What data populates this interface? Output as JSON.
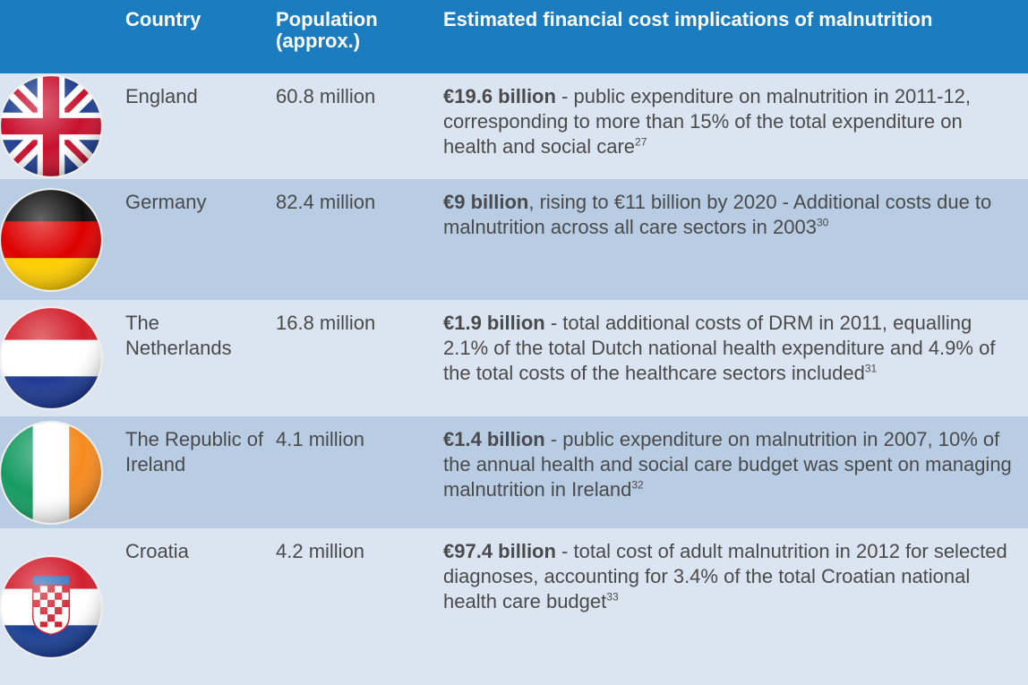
{
  "table": {
    "header": [
      "Country",
      "Population (approx.)",
      "Estimated financial cost implications of malnutrition"
    ],
    "rows": [
      {
        "country": "England",
        "population": "60.8 million",
        "cost_bold": "€19.6 billion",
        "cost_text": " - public expenditure on malnutrition in 2011-12, corresponding to more than 15% of the total expenditure on health and social care",
        "ref": "27"
      },
      {
        "country": "Germany",
        "population": "82.4 million",
        "cost_bold": "€9 billion",
        "cost_text": ", rising to €11 billion by 2020 - Additional costs due to malnutrition across all care sectors in 2003",
        "ref": "30"
      },
      {
        "country": "The Netherlands",
        "population": "16.8 million",
        "cost_bold": "€1.9 billion",
        "cost_text": " - total additional costs of DRM in 2011, equalling 2.1% of the total Dutch national health expenditure and 4.9% of the total costs of the healthcare sectors included",
        "ref": "31"
      },
      {
        "country": "The Republic of Ireland",
        "population": "4.1 million",
        "cost_bold": "€1.4 billion",
        "cost_text": " - public expenditure on malnutrition in 2007, 10% of the annual health and social care budget was spent on managing malnutrition in Ireland",
        "ref": "32"
      },
      {
        "country": "Croatia",
        "population": "4.2 million",
        "cost_bold": "€97.4 billion",
        "cost_text": " - total cost of adult malnutrition in 2012 for selected diagnoses, accounting for 3.4% of the total Croatian national health care budget",
        "ref": "33"
      }
    ]
  }
}
